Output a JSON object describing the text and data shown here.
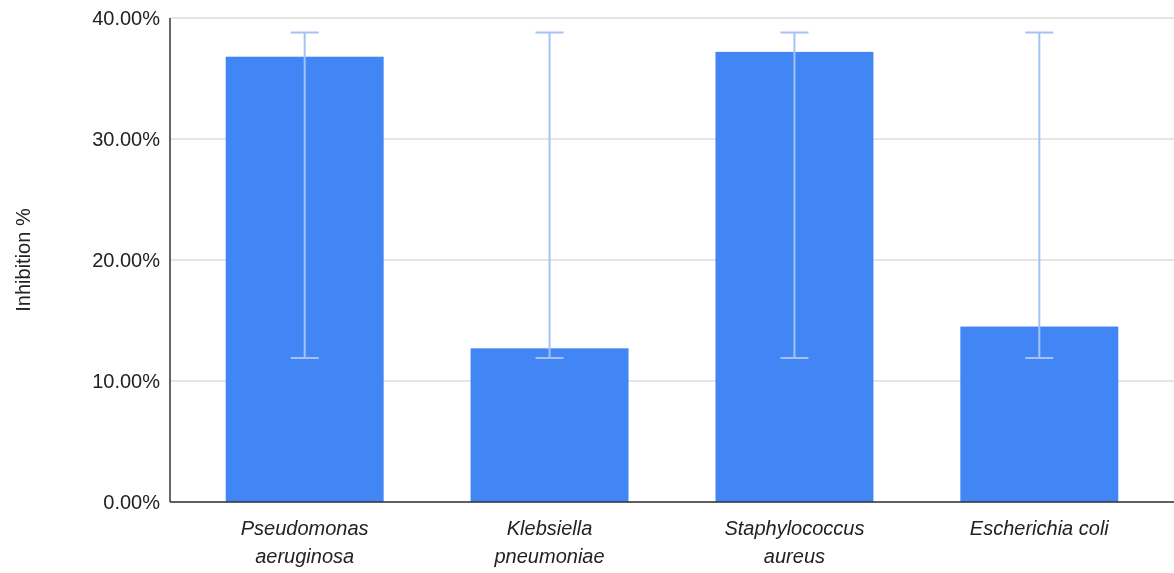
{
  "chart_data": {
    "type": "bar",
    "ylabel": "Inhibition %",
    "categories": [
      "Pseudomonas aeruginosa",
      "Klebsiella pneumoniae",
      "Staphylococcus aureus",
      "Escherichia coli"
    ],
    "values": [
      36.8,
      12.7,
      37.2,
      14.5
    ],
    "errors": [
      [
        11.9,
        38.8
      ],
      [
        11.9,
        38.8
      ],
      [
        11.9,
        38.8
      ],
      [
        11.9,
        38.8
      ]
    ],
    "color": "#4285f4",
    "ylim": [
      0,
      40
    ],
    "yticks": [
      {
        "value": 0,
        "label": "0.00%"
      },
      {
        "value": 10,
        "label": "10.00%"
      },
      {
        "value": 20,
        "label": "20.00%"
      },
      {
        "value": 30,
        "label": "30.00%"
      },
      {
        "value": 40,
        "label": "40.00%"
      }
    ],
    "grid": "y"
  }
}
